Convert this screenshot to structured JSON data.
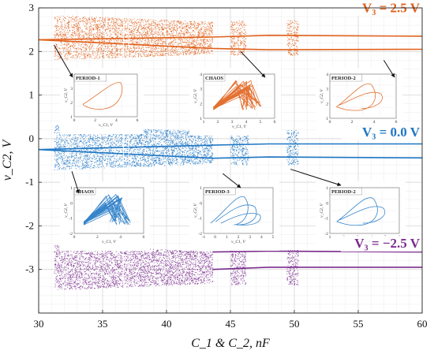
{
  "chart_data": {
    "type": "scatter",
    "xlabel": "C_1 & C_2, nF",
    "ylabel": "v_C2, V",
    "xlim": [
      30,
      60
    ],
    "ylim": [
      -4,
      3
    ],
    "xticks": [
      30,
      35,
      40,
      45,
      50,
      55,
      60
    ],
    "yticks": [
      3,
      2,
      1,
      0,
      -1,
      -2,
      -3
    ],
    "grid": true,
    "series": [
      {
        "name": "V3 = 2.5 V",
        "color": "#e0601a",
        "band_center": 2.32,
        "chaotic_ranges": [
          [
            31.2,
            43.6
          ],
          [
            45.0,
            46.2
          ],
          [
            49.4,
            50.3
          ]
        ],
        "periodic_branches": [
          {
            "x": [
              30.0,
              43.6,
              48.0,
              60.0
            ],
            "y": [
              2.27,
              2.33,
              2.37,
              2.35
            ]
          },
          {
            "x": [
              30.0,
              43.6,
              48.0,
              60.0
            ],
            "y": [
              2.27,
              2.07,
              2.04,
              2.05
            ]
          }
        ]
      },
      {
        "name": "V3 = 0.0 V",
        "color": "#1f77c4",
        "band_center": -0.2,
        "chaotic_ranges": [
          [
            31.2,
            43.6
          ],
          [
            45.0,
            46.4
          ],
          [
            49.4,
            50.3
          ]
        ],
        "periodic_branches": [
          {
            "x": [
              30.0,
              43.6,
              48.0,
              60.0
            ],
            "y": [
              -0.25,
              -0.15,
              -0.12,
              -0.12
            ]
          },
          {
            "x": [
              30.0,
              43.6,
              48.0,
              60.0
            ],
            "y": [
              -0.25,
              -0.45,
              -0.42,
              -0.44
            ]
          }
        ]
      },
      {
        "name": "V3 = −2.5 V",
        "color": "#7b2d8e",
        "band_center": -2.95,
        "chaotic_ranges": [
          [
            31.2,
            43.6
          ],
          [
            45.0,
            46.2
          ],
          [
            49.4,
            50.3
          ]
        ],
        "periodic_branches": [
          {
            "x": [
              43.6,
              48.0,
              60.0
            ],
            "y": [
              -2.6,
              -2.58,
              -2.6
            ]
          },
          {
            "x": [
              43.6,
              48.0,
              60.0
            ],
            "y": [
              -3.0,
              -2.95,
              -2.95
            ]
          }
        ]
      }
    ],
    "annotations": [
      {
        "text": "V₃ = 2.5 V",
        "color": "#e0601a"
      },
      {
        "text": "V₃ = 0.0 V",
        "color": "#1f77c4"
      },
      {
        "text": "V₃ = −2.5 V",
        "color": "#7b2d8e"
      }
    ],
    "insets": [
      {
        "title": "PERIOD-1",
        "color": "#e0601a",
        "behavior": "period-1",
        "xlabel": "v_C1, V",
        "ylabel": "v_C2, V",
        "xticks": [
          "0",
          "2",
          "4",
          "6"
        ],
        "yticks": [
          "4",
          "3",
          "2",
          "1"
        ]
      },
      {
        "title": "CHAOS",
        "color": "#e0601a",
        "behavior": "chaos",
        "xlabel": "v_C1, V",
        "ylabel": "v_C2, V",
        "xticks": [
          "1",
          "2",
          "3",
          "4",
          "5",
          "6"
        ],
        "yticks": [
          "4",
          "3",
          "2",
          "1"
        ]
      },
      {
        "title": "PERIOD-2",
        "color": "#e0601a",
        "behavior": "period-2",
        "xlabel": "v_C1, V",
        "ylabel": "v_C2, V",
        "xticks": [
          "0",
          "2",
          "4",
          "6"
        ],
        "yticks": [
          "4",
          "3",
          "2",
          "1"
        ]
      },
      {
        "title": "CHAOS",
        "color": "#1f77c4",
        "behavior": "chaos",
        "xlabel": "v_C1, V",
        "ylabel": "v_C2, V",
        "xticks": [
          "0",
          "2",
          "4",
          "6"
        ],
        "yticks": [
          "1",
          "0",
          "-1",
          "-2"
        ]
      },
      {
        "title": "PERIOD-3",
        "color": "#1f77c4",
        "behavior": "period-3",
        "xlabel": "v_C1, V",
        "ylabel": "v_C2, V",
        "xticks": [
          "-1",
          "0",
          "1",
          "2",
          "3",
          "4",
          "5"
        ],
        "yticks": [
          "1",
          "0",
          "-1",
          "-2"
        ]
      },
      {
        "title": "PERIOD-2",
        "color": "#1f77c4",
        "behavior": "period-2",
        "xlabel": "v_C1, V",
        "ylabel": "v_C2, V",
        "xticks": [
          "1",
          "2",
          "3",
          "4",
          "5",
          "6"
        ],
        "yticks": [
          "1",
          "0",
          "-1",
          "-2"
        ]
      }
    ]
  }
}
